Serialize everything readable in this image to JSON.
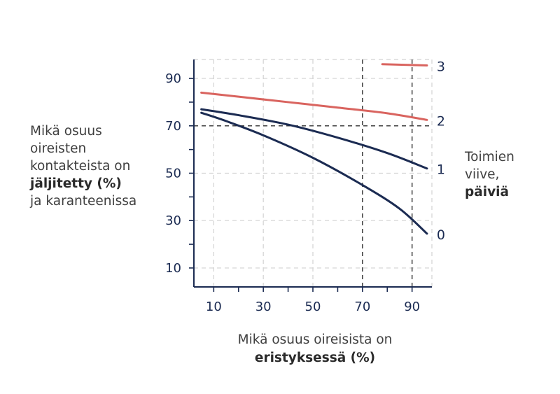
{
  "chart_data": {
    "type": "line",
    "ylabel_lines": [
      "Mikä osuus",
      "oireisten",
      "kontakteista on"
    ],
    "ylabel_bold": "jäljitetty (%)",
    "ylabel_tail": "ja karanteenissa",
    "xlabel_line": "Mikä osuus oireisista on",
    "xlabel_bold": "eristyksessä (%)",
    "series_axis_lines": [
      "Toimien",
      "viive,"
    ],
    "series_axis_bold": "päiviä",
    "x_ticks": [
      10,
      30,
      50,
      70,
      90
    ],
    "y_ticks": [
      10,
      30,
      50,
      70,
      90
    ],
    "xlim": [
      2,
      98
    ],
    "ylim": [
      2,
      98
    ],
    "grid": true,
    "reference_lines": {
      "x": [
        70,
        90
      ],
      "y": 70
    },
    "series": [
      {
        "name": "3",
        "color": "#d9645f",
        "x": [
          78,
          96
        ],
        "y": [
          96,
          95.5
        ]
      },
      {
        "name": "2",
        "color": "#d9645f",
        "x": [
          5,
          20,
          40,
          60,
          80,
          96
        ],
        "y": [
          84,
          82.3,
          80,
          77.7,
          75.3,
          72.5
        ]
      },
      {
        "name": "1",
        "color": "#1b2b52",
        "x": [
          5,
          20,
          40,
          60,
          80,
          96
        ],
        "y": [
          77,
          74.5,
          70.5,
          65,
          58.5,
          52
        ]
      },
      {
        "name": "0",
        "color": "#1b2b52",
        "x": [
          5,
          15,
          30,
          50,
          70,
          85,
          96
        ],
        "y": [
          75.5,
          72,
          66,
          56.5,
          45,
          35,
          24.5
        ]
      }
    ]
  }
}
